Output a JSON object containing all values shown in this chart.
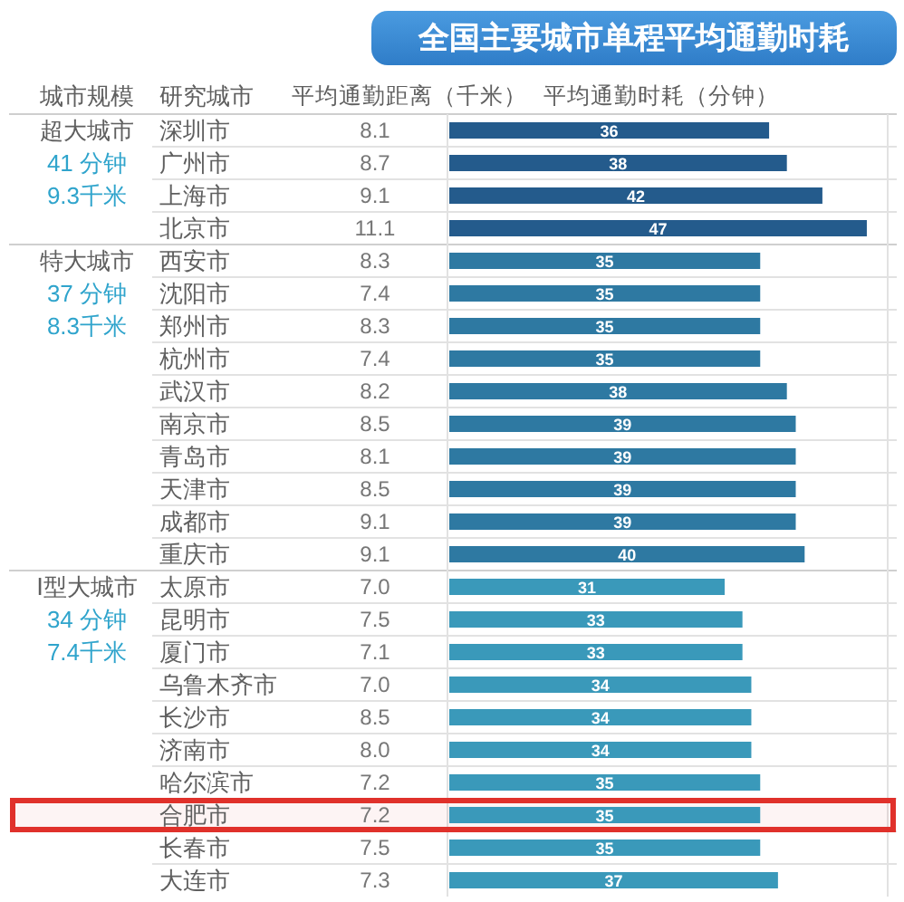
{
  "chart_data": [
    {
      "type": "bar",
      "orientation": "horizontal",
      "title": "全国主要城市单程平均通勤时耗",
      "xlabel": "平均通勤时耗（分钟）",
      "ylabel": "研究城市",
      "categories": [
        "深圳市",
        "广州市",
        "上海市",
        "北京市",
        "西安市",
        "沈阳市",
        "郑州市",
        "杭州市",
        "武汉市",
        "南京市",
        "青岛市",
        "天津市",
        "成都市",
        "重庆市",
        "太原市",
        "昆明市",
        "厦门市",
        "乌鲁木齐市",
        "长沙市",
        "济南市",
        "哈尔滨市",
        "合肥市",
        "长春市",
        "大连市"
      ],
      "values": [
        36,
        38,
        42,
        47,
        35,
        35,
        35,
        35,
        38,
        39,
        39,
        39,
        39,
        40,
        31,
        33,
        33,
        34,
        34,
        34,
        35,
        35,
        35,
        37
      ],
      "colors": [
        "#245b8c",
        "#245b8c",
        "#245b8c",
        "#245b8c",
        "#2e79a2",
        "#2e79a2",
        "#2e79a2",
        "#2e79a2",
        "#2e79a2",
        "#2e79a2",
        "#2e79a2",
        "#2e79a2",
        "#2e79a2",
        "#2e79a2",
        "#3a99ba",
        "#3a99ba",
        "#3a99ba",
        "#3a99ba",
        "#3a99ba",
        "#3a99ba",
        "#3a99ba",
        "#3a99ba",
        "#3a99ba",
        "#3a99ba"
      ],
      "data_labels": true,
      "annotations": [
        "城市规模",
        "超大城市",
        "41 分钟",
        "9.3千米",
        "特大城市",
        "37 分钟",
        "8.3千米",
        "Ⅰ型大城市",
        "34 分钟",
        "7.4千米"
      ],
      "bands": [
        {
          "axis": "y",
          "from": "合肥市",
          "to": "合肥市",
          "color": "#e0312b"
        }
      ]
    },
    {
      "type": "other",
      "xlabel": "平均通勤距离（千米）",
      "categories": [
        null,
        null,
        null,
        null,
        null,
        null,
        null,
        null,
        null,
        null,
        null,
        null,
        null,
        null,
        null,
        null,
        null,
        null,
        null,
        null,
        null,
        null,
        null,
        null
      ],
      "values": [
        8.1,
        8.7,
        9.1,
        11.1,
        8.3,
        7.4,
        8.3,
        7.4,
        8.2,
        8.5,
        8.1,
        8.5,
        9.1,
        9.1,
        7.0,
        7.5,
        7.1,
        7.0,
        8.5,
        8.0,
        7.2,
        7.2,
        7.5,
        7.3
      ],
      "value_labels": [
        "8.1",
        "8.7",
        "9.1",
        "11.1",
        "8.3",
        "7.4",
        "8.3",
        "7.4",
        "8.2",
        "8.5",
        "8.1",
        "8.5",
        "9.1",
        "9.1",
        "7.0",
        "7.5",
        "7.1",
        "7.0",
        "8.5",
        "8.0",
        "7.2",
        "7.2",
        "7.5",
        "7.3"
      ]
    }
  ]
}
